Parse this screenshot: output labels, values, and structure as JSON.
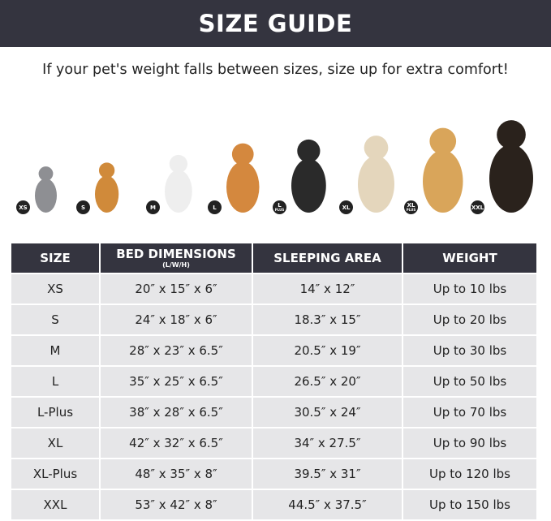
{
  "title": "SIZE GUIDE",
  "subtitle": "If your pet's weight falls between sizes, size up for extra comfort!",
  "pets": [
    {
      "badge": "XS",
      "plus": "",
      "color": "#8e8f93",
      "h": 60
    },
    {
      "badge": "S",
      "plus": "",
      "color": "#d08a3a",
      "h": 65
    },
    {
      "badge": "M",
      "plus": "",
      "color": "#eeeeee",
      "h": 75
    },
    {
      "badge": "L",
      "plus": "",
      "color": "#d4883e",
      "h": 90
    },
    {
      "badge": "L",
      "plus": "PLUS",
      "color": "#2a2a2a",
      "h": 95
    },
    {
      "badge": "XL",
      "plus": "",
      "color": "#e4d6bc",
      "h": 100
    },
    {
      "badge": "XL",
      "plus": "PLUS",
      "color": "#d9a55a",
      "h": 110
    },
    {
      "badge": "XXL",
      "plus": "",
      "color": "#2a221c",
      "h": 120
    }
  ],
  "table": {
    "headers": [
      "SIZE",
      "BED DIMENSIONS",
      "SLEEPING AREA",
      "WEIGHT"
    ],
    "header_sub": "(L/W/H)",
    "rows": [
      [
        "XS",
        "20″ x 15″ x 6″",
        "14″ x 12″",
        "Up to 10 lbs"
      ],
      [
        "S",
        "24″ x 18″ x 6″",
        "18.3″ x 15″",
        "Up to 20 lbs"
      ],
      [
        "M",
        "28″ x 23″ x 6.5″",
        "20.5″ x 19″",
        "Up to 30 lbs"
      ],
      [
        "L",
        "35″ x 25″ x 6.5″",
        "26.5″ x 20″",
        "Up to 50 lbs"
      ],
      [
        "L-Plus",
        "38″ x 28″ x 6.5″",
        "30.5″ x 24″",
        "Up to 70 lbs"
      ],
      [
        "XL",
        "42″ x 32″ x 6.5″",
        "34″ x 27.5″",
        "Up to 90 lbs"
      ],
      [
        "XL-Plus",
        "48″ x 35″ x 8″",
        "39.5″ x 31″",
        "Up to 120 lbs"
      ],
      [
        "XXL",
        "53″ x 42″ x 8″",
        "44.5″ x 37.5″",
        "Up to 150 lbs"
      ]
    ]
  }
}
